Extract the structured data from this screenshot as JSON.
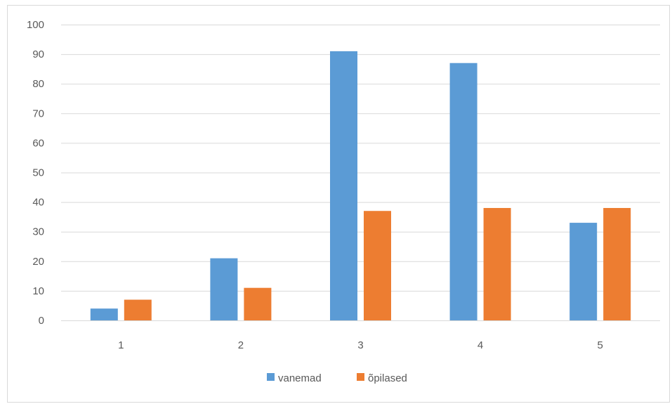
{
  "chart_data": {
    "type": "bar",
    "categories": [
      "1",
      "2",
      "3",
      "4",
      "5"
    ],
    "series": [
      {
        "name": "vanemad",
        "values": [
          4,
          21,
          91,
          87,
          33
        ],
        "color": "#5b9bd5"
      },
      {
        "name": "õpilased",
        "values": [
          7,
          11,
          37,
          38,
          38
        ],
        "color": "#ed7d31"
      }
    ],
    "ylim": [
      0,
      100
    ],
    "yticks": [
      0,
      10,
      20,
      30,
      40,
      50,
      60,
      70,
      80,
      90,
      100
    ],
    "grid": true,
    "legend_position": "bottom",
    "gridline_color": "#d9d9d9"
  }
}
